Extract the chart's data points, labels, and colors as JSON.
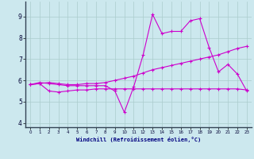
{
  "xlabel": "Windchill (Refroidissement éolien,°C)",
  "background_color": "#cce8ee",
  "grid_color": "#aacccc",
  "line_color": "#cc00cc",
  "xlim": [
    -0.5,
    23.5
  ],
  "ylim": [
    3.8,
    9.7
  ],
  "yticks": [
    4,
    5,
    6,
    7,
    8,
    9
  ],
  "xticks": [
    0,
    1,
    2,
    3,
    4,
    5,
    6,
    7,
    8,
    9,
    10,
    11,
    12,
    13,
    14,
    15,
    16,
    17,
    18,
    19,
    20,
    21,
    22,
    23
  ],
  "series1_x": [
    0,
    1,
    2,
    3,
    4,
    5,
    6,
    7,
    8,
    9,
    10,
    11,
    12,
    13,
    14,
    15,
    16,
    17,
    18,
    19,
    20,
    21,
    22,
    23
  ],
  "series1_y": [
    5.8,
    5.9,
    5.85,
    5.8,
    5.75,
    5.75,
    5.75,
    5.75,
    5.75,
    5.5,
    4.5,
    5.7,
    7.2,
    9.1,
    8.2,
    8.3,
    8.3,
    8.8,
    8.9,
    7.55,
    6.4,
    6.75,
    6.3,
    5.5
  ],
  "series2_x": [
    0,
    1,
    2,
    3,
    4,
    5,
    6,
    7,
    8,
    9,
    10,
    11,
    12,
    13,
    14,
    15,
    16,
    17,
    18,
    19,
    20,
    21,
    22,
    23
  ],
  "series2_y": [
    5.8,
    5.85,
    5.9,
    5.85,
    5.8,
    5.8,
    5.85,
    5.85,
    5.9,
    6.0,
    6.1,
    6.2,
    6.35,
    6.5,
    6.6,
    6.7,
    6.8,
    6.9,
    7.0,
    7.1,
    7.2,
    7.35,
    7.5,
    7.6
  ],
  "series3_x": [
    0,
    1,
    2,
    3,
    4,
    5,
    6,
    7,
    8,
    9,
    10,
    11,
    12,
    13,
    14,
    15,
    16,
    17,
    18,
    19,
    20,
    21,
    22,
    23
  ],
  "series3_y": [
    5.8,
    5.85,
    5.5,
    5.45,
    5.5,
    5.55,
    5.55,
    5.6,
    5.6,
    5.6,
    5.6,
    5.6,
    5.6,
    5.6,
    5.6,
    5.6,
    5.6,
    5.6,
    5.6,
    5.6,
    5.6,
    5.6,
    5.6,
    5.55
  ]
}
